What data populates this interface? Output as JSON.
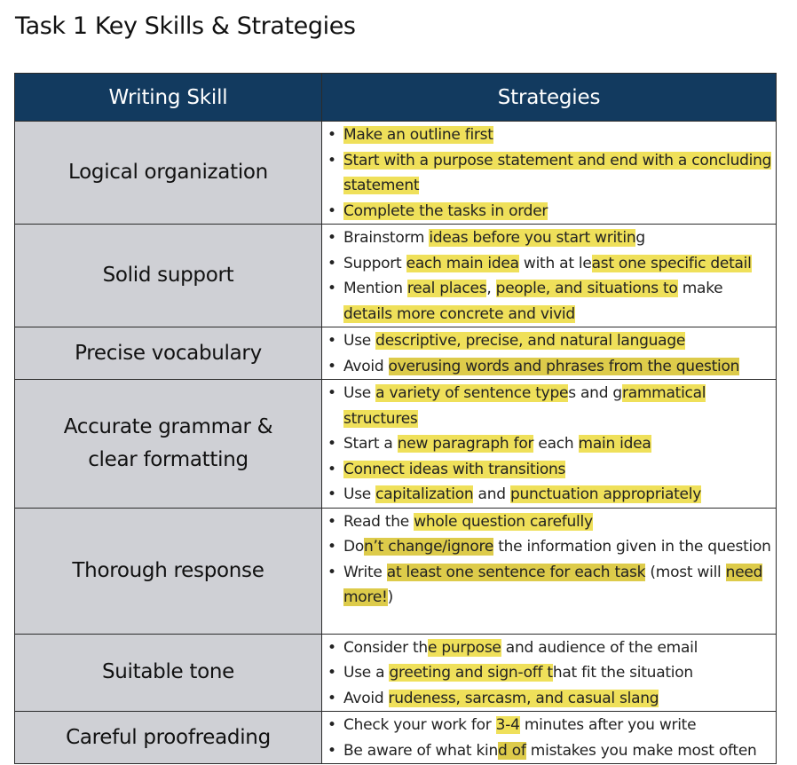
{
  "title": "Task 1 Key Skills & Strategies",
  "headers": {
    "skill": "Writing Skill",
    "strategies": "Strategies"
  },
  "colors": {
    "header_bg": "#123a5f",
    "skill_bg": "#cfd0d5",
    "highlight": "#efe05a"
  },
  "rows": [
    {
      "skill": "Logical organization",
      "bullets": [
        "Make an outline first",
        "Start with a purpose statement and end with a concluding statement",
        "Complete the tasks in order"
      ]
    },
    {
      "skill": "Solid support",
      "bullets": [
        "Brainstorm ideas before you start writing",
        "Support each main idea with at least one specific detail",
        "Mention real places, people, and situations to make details more concrete and vivid"
      ]
    },
    {
      "skill": "Precise vocabulary",
      "bullets": [
        "Use descriptive, precise, and natural language",
        "Avoid overusing words and phrases from the question"
      ]
    },
    {
      "skill": "Accurate grammar & clear formatting",
      "bullets": [
        "Use a variety of sentence types and grammatical structures",
        "Start a new paragraph for each main idea",
        "Connect ideas with transitions",
        "Use capitalization and punctuation appropriately"
      ]
    },
    {
      "skill": "Thorough response",
      "bullets": [
        "Read the whole question carefully",
        "Don’t change/ignore the information given in the question",
        "Write at least one sentence for each task (most will need more!)"
      ]
    },
    {
      "skill": "Suitable tone",
      "bullets": [
        "Consider the purpose and audience of the email",
        "Use a greeting and sign-off that fit the situation",
        "Avoid rudeness, sarcasm, and casual slang"
      ]
    },
    {
      "skill": "Careful proofreading",
      "bullets": [
        "Check your work for 3-4 minutes after you write",
        "Be aware of what kind of mistakes you make most often"
      ]
    }
  ]
}
